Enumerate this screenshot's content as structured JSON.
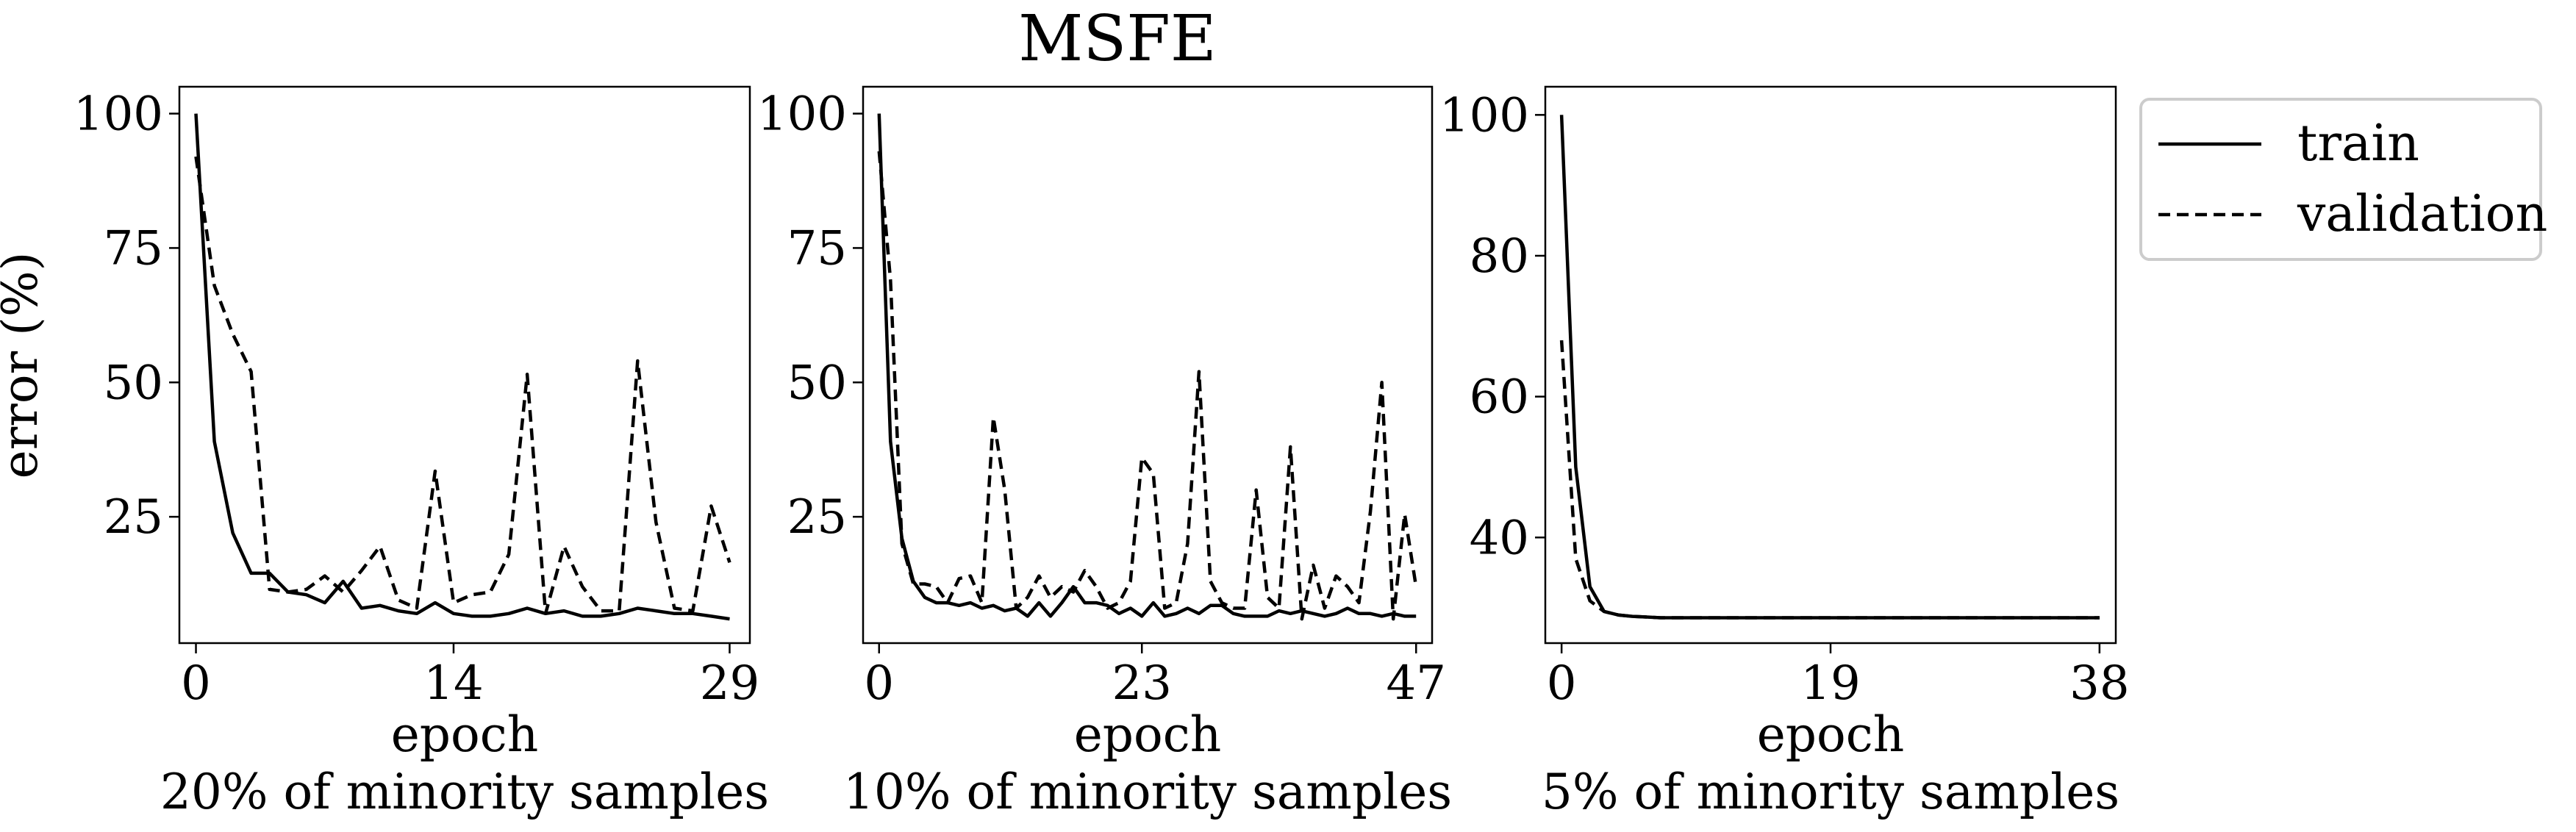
{
  "figure": {
    "title": "MSFE"
  },
  "legend": {
    "placement": "upper-right-outside",
    "entries": [
      {
        "label": "train",
        "style": "solid"
      },
      {
        "label": "validation",
        "style": "dashed"
      }
    ]
  },
  "colors": {
    "line": "#000000",
    "background": "#ffffff",
    "frame": "#000000",
    "legend_border": "#cccccc"
  },
  "chart_data": [
    {
      "type": "line",
      "xlabel": "epoch",
      "xlabel2": "20% of minority samples",
      "ylabel": "error (%)",
      "xlim": [
        -0.9,
        30.1
      ],
      "ylim": [
        1.5,
        105
      ],
      "xticks": [
        0,
        14,
        29
      ],
      "yticks": [
        25,
        50,
        75,
        100
      ],
      "grid": false,
      "series": [
        {
          "name": "train",
          "style": "solid",
          "x": [
            0,
            1,
            2,
            3,
            4,
            5,
            6,
            7,
            8,
            9,
            10,
            11,
            12,
            13,
            14,
            15,
            16,
            17,
            18,
            19,
            20,
            21,
            22,
            23,
            24,
            25,
            26,
            27,
            28,
            29
          ],
          "values": [
            100,
            39,
            22,
            14.5,
            14.5,
            11,
            10.5,
            9,
            13,
            8,
            8.5,
            7.5,
            7,
            9,
            7,
            6.5,
            6.5,
            7,
            8,
            7,
            7.5,
            6.5,
            6.5,
            7,
            8,
            7.5,
            7,
            7,
            6.5,
            6
          ]
        },
        {
          "name": "validation",
          "style": "dashed",
          "x": [
            0,
            1,
            2,
            3,
            4,
            5,
            6,
            7,
            8,
            9,
            10,
            11,
            12,
            13,
            14,
            15,
            16,
            17,
            18,
            19,
            20,
            21,
            22,
            23,
            24,
            25,
            26,
            27,
            28,
            29
          ],
          "values": [
            92,
            68,
            59,
            52,
            11.5,
            11,
            11.5,
            14,
            11,
            15,
            19.5,
            9.5,
            8,
            33.5,
            9,
            10.5,
            11,
            18,
            51.5,
            7,
            19.5,
            12,
            7.5,
            7.5,
            54,
            24,
            8,
            7.5,
            27,
            16.5
          ]
        }
      ]
    },
    {
      "type": "line",
      "xlabel": "epoch",
      "xlabel2": "10% of minority samples",
      "ylabel": "",
      "xlim": [
        -1.4,
        48.4
      ],
      "ylim": [
        1.5,
        105
      ],
      "xticks": [
        0,
        23,
        47
      ],
      "yticks": [
        25,
        50,
        75,
        100
      ],
      "grid": false,
      "series": [
        {
          "name": "train",
          "style": "solid",
          "x": [
            0,
            1,
            2,
            3,
            4,
            5,
            6,
            7,
            8,
            9,
            10,
            11,
            12,
            13,
            14,
            15,
            16,
            17,
            18,
            19,
            20,
            21,
            22,
            23,
            24,
            25,
            26,
            27,
            28,
            29,
            30,
            31,
            32,
            33,
            34,
            35,
            36,
            37,
            38,
            39,
            40,
            41,
            42,
            43,
            44,
            45,
            46,
            47
          ],
          "values": [
            100,
            39,
            21,
            13,
            10,
            9,
            9,
            8.5,
            9,
            8,
            8.5,
            7.5,
            8,
            6.5,
            9,
            6.5,
            9,
            12,
            9,
            9,
            8.5,
            7,
            8,
            6.5,
            9,
            6.5,
            7,
            8,
            7,
            8.5,
            8.5,
            7,
            6.5,
            6.5,
            6.5,
            7.5,
            7,
            7.5,
            7,
            6.5,
            7,
            8,
            7,
            7,
            6.5,
            7,
            6.5,
            6.5
          ]
        },
        {
          "name": "validation",
          "style": "dashed",
          "x": [
            0,
            1,
            2,
            3,
            4,
            5,
            6,
            7,
            8,
            9,
            10,
            11,
            12,
            13,
            14,
            15,
            16,
            17,
            18,
            19,
            20,
            21,
            22,
            23,
            24,
            25,
            26,
            27,
            28,
            29,
            30,
            31,
            32,
            33,
            34,
            35,
            36,
            37,
            38,
            39,
            40,
            41,
            42,
            43,
            44,
            45,
            46,
            47
          ],
          "values": [
            93,
            69,
            20,
            12.5,
            12.5,
            12,
            9,
            13.5,
            14,
            9,
            43.5,
            30,
            8,
            10,
            14,
            10,
            12,
            11,
            15,
            12,
            8,
            9,
            13,
            36,
            33,
            8,
            9,
            20,
            52,
            13,
            9,
            8,
            8,
            30,
            10,
            8,
            38,
            6,
            16,
            8,
            14,
            12,
            9,
            26,
            50,
            6,
            25.5,
            12
          ]
        }
      ]
    },
    {
      "type": "line",
      "xlabel": "epoch",
      "xlabel2": "5% of minority samples",
      "ylabel": "",
      "xlim": [
        -1.15,
        39.15
      ],
      "ylim": [
        25,
        104
      ],
      "xticks": [
        0,
        19,
        38
      ],
      "yticks": [
        40,
        60,
        80,
        100
      ],
      "grid": false,
      "series": [
        {
          "name": "train",
          "style": "solid",
          "x": [
            0,
            1,
            2,
            3,
            4,
            5,
            6,
            7,
            8,
            9,
            10,
            11,
            12,
            13,
            14,
            15,
            16,
            17,
            18,
            19,
            20,
            21,
            22,
            23,
            24,
            25,
            26,
            27,
            28,
            29,
            30,
            31,
            32,
            33,
            34,
            35,
            36,
            37,
            38
          ],
          "values": [
            100,
            50,
            33,
            29.5,
            29,
            28.8,
            28.7,
            28.6,
            28.6,
            28.6,
            28.6,
            28.6,
            28.6,
            28.6,
            28.6,
            28.6,
            28.6,
            28.6,
            28.6,
            28.6,
            28.6,
            28.6,
            28.6,
            28.6,
            28.6,
            28.6,
            28.6,
            28.6,
            28.6,
            28.6,
            28.6,
            28.6,
            28.6,
            28.6,
            28.6,
            28.6,
            28.6,
            28.6,
            28.6
          ]
        },
        {
          "name": "validation",
          "style": "dashed",
          "x": [
            0,
            1,
            2,
            3,
            4,
            5,
            6,
            7,
            8,
            9,
            10,
            11,
            12,
            13,
            14,
            15,
            16,
            17,
            18,
            19,
            20,
            21,
            22,
            23,
            24,
            25,
            26,
            27,
            28,
            29,
            30,
            31,
            32,
            33,
            34,
            35,
            36,
            37,
            38
          ],
          "values": [
            68,
            37,
            31,
            29.5,
            29,
            28.8,
            28.7,
            28.6,
            28.6,
            28.6,
            28.6,
            28.6,
            28.6,
            28.6,
            28.6,
            28.6,
            28.6,
            28.6,
            28.6,
            28.6,
            28.6,
            28.6,
            28.6,
            28.6,
            28.6,
            28.6,
            28.6,
            28.6,
            28.6,
            28.6,
            28.6,
            28.6,
            28.6,
            28.6,
            28.6,
            28.6,
            28.6,
            28.6,
            28.6
          ]
        }
      ]
    }
  ]
}
